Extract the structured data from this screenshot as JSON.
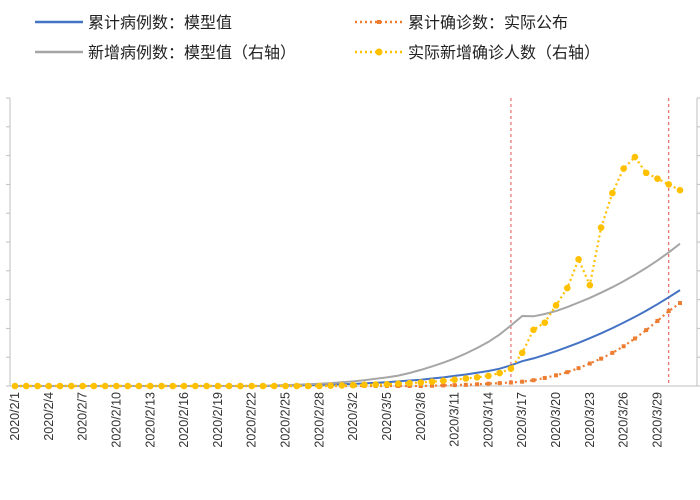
{
  "chart_data": {
    "type": "line",
    "categories": [
      "2020/2/1",
      "2020/2/2",
      "2020/2/3",
      "2020/2/4",
      "2020/2/5",
      "2020/2/6",
      "2020/2/7",
      "2020/2/8",
      "2020/2/9",
      "2020/2/10",
      "2020/2/11",
      "2020/2/12",
      "2020/2/13",
      "2020/2/14",
      "2020/2/15",
      "2020/2/16",
      "2020/2/17",
      "2020/2/18",
      "2020/2/19",
      "2020/2/20",
      "2020/2/21",
      "2020/2/22",
      "2020/2/23",
      "2020/2/24",
      "2020/2/25",
      "2020/2/26",
      "2020/2/27",
      "2020/2/28",
      "2020/2/29",
      "2020/3/1",
      "2020/3/2",
      "2020/3/3",
      "2020/3/4",
      "2020/3/5",
      "2020/3/6",
      "2020/3/7",
      "2020/3/8",
      "2020/3/9",
      "2020/3/10",
      "2020/3/11",
      "2020/3/12",
      "2020/3/13",
      "2020/3/14",
      "2020/3/15",
      "2020/3/16",
      "2020/3/17",
      "2020/3/18",
      "2020/3/19",
      "2020/3/20",
      "2020/3/21",
      "2020/3/22",
      "2020/3/23",
      "2020/3/24",
      "2020/3/25",
      "2020/3/26",
      "2020/3/27",
      "2020/3/28",
      "2020/3/29",
      "2020/3/30",
      "2020/3/31"
    ],
    "tick_labels": [
      "2020/2/1",
      "2020/2/4",
      "2020/2/7",
      "2020/2/10",
      "2020/2/13",
      "2020/2/16",
      "2020/2/19",
      "2020/2/22",
      "2020/2/25",
      "2020/2/28",
      "2020/3/2",
      "2020/3/5",
      "2020/3/8",
      "2020/3/11",
      "2020/3/14",
      "2020/3/17",
      "2020/3/20",
      "2020/3/23",
      "2020/3/26",
      "2020/3/29"
    ],
    "ylim": [
      0,
      100
    ],
    "y2lim": [
      0,
      100
    ],
    "series": [
      {
        "name": "累计病例数：模型值",
        "axis": "left",
        "color": "#4472c4",
        "style": "solid",
        "values": [
          0,
          0,
          0,
          0,
          0,
          0,
          0,
          0,
          0,
          0,
          0,
          0,
          0,
          0,
          0,
          0,
          0,
          0,
          0,
          0,
          0,
          0,
          0,
          0.1,
          0.1,
          0.2,
          0.3,
          0.4,
          0.5,
          0.6,
          0.7,
          0.9,
          1.1,
          1.3,
          1.6,
          1.9,
          2.2,
          2.6,
          3.0,
          3.5,
          4.0,
          4.6,
          5.2,
          6.0,
          7.2,
          8.6,
          9.6,
          10.8,
          12.1,
          13.5,
          15.0,
          16.6,
          18.3,
          20.1,
          22.0,
          24.0,
          26.1,
          28.4,
          30.8,
          33.3
        ]
      },
      {
        "name": "新增病例数：模型值（右轴）",
        "axis": "right",
        "color": "#a6a6a6",
        "style": "solid",
        "values": [
          0,
          0,
          0,
          0,
          0,
          0,
          0,
          0,
          0,
          0,
          0,
          0,
          0,
          0,
          0,
          0,
          0,
          0,
          0,
          0,
          0,
          0,
          0,
          0.2,
          0.3,
          0.4,
          0.6,
          0.8,
          1.0,
          1.3,
          1.6,
          2.0,
          2.5,
          3.0,
          3.6,
          4.5,
          5.6,
          6.8,
          8.1,
          9.6,
          11.3,
          13.2,
          15.3,
          17.9,
          21.0,
          24.3,
          24.2,
          25.0,
          26.0,
          27.4,
          29.0,
          30.6,
          32.4,
          34.3,
          36.4,
          38.6,
          41.0,
          43.6,
          46.4,
          49.4
        ]
      },
      {
        "name": "累计确诊数：实际公布",
        "axis": "left",
        "color": "#ed7d31",
        "style": "dotted",
        "values": [
          0,
          0,
          0,
          0,
          0,
          0,
          0,
          0,
          0,
          0,
          0,
          0,
          0,
          0,
          0,
          0,
          0,
          0,
          0,
          0,
          0,
          0,
          0,
          0,
          0,
          0,
          0,
          0,
          0,
          0,
          0,
          0,
          0,
          0,
          0,
          0,
          0,
          0.1,
          0.2,
          0.3,
          0.4,
          0.6,
          0.8,
          1.0,
          1.2,
          1.5,
          2.0,
          2.8,
          3.7,
          4.8,
          6.2,
          7.8,
          9.5,
          11.5,
          13.8,
          16.5,
          19.4,
          22.6,
          26.0,
          28.8
        ]
      },
      {
        "name": "实际新增确诊人数（右轴）",
        "axis": "right",
        "color": "#ffc000",
        "style": "dotted",
        "values": [
          0,
          0,
          0,
          0,
          0,
          0,
          0,
          0,
          0,
          0,
          0,
          0,
          0,
          0,
          0,
          0,
          0,
          0,
          0,
          0,
          0,
          0,
          0,
          0,
          0,
          0,
          0,
          0,
          0.1,
          0.2,
          0.3,
          0.4,
          0.5,
          0.6,
          0.8,
          1.0,
          1.2,
          1.5,
          1.8,
          2.2,
          2.6,
          3.0,
          3.5,
          4.5,
          6.0,
          11.5,
          19.5,
          22.0,
          28.0,
          34.0,
          44.0,
          35.0,
          55.0,
          67.0,
          75.5,
          79.5,
          74.0,
          72.0,
          70.0,
          68.0
        ]
      }
    ],
    "reference_lines_x": [
      "2020/3/16",
      "2020/3/30"
    ],
    "reference_line_color": "#e05050",
    "grid": false,
    "legend_position": "top"
  }
}
